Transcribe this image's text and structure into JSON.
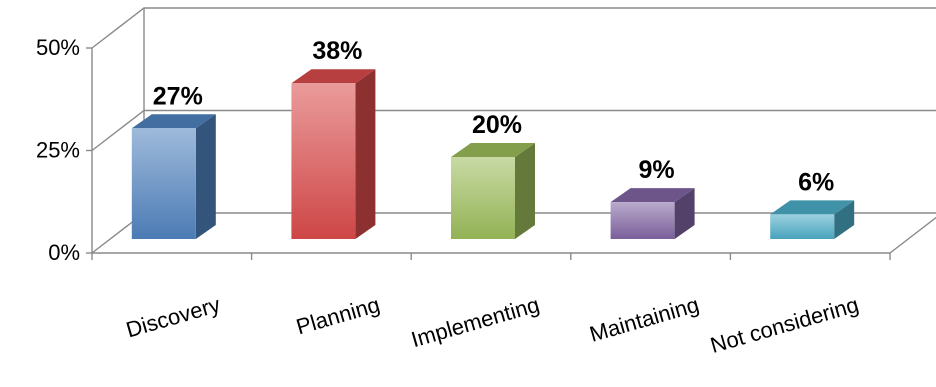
{
  "chart_data": {
    "type": "bar",
    "categories": [
      "Discovery",
      "Planning",
      "Implementing",
      "Maintaining",
      "Not considering"
    ],
    "values": [
      27,
      38,
      20,
      9,
      6
    ],
    "data_labels": [
      "27%",
      "38%",
      "20%",
      "9%",
      "6%"
    ],
    "ytick_labels": [
      "0%",
      "25%",
      "50%"
    ],
    "ylim": [
      0,
      50
    ],
    "grid": true,
    "three_d": true,
    "colors": [
      "#4f81bd",
      "#d94a4a",
      "#9bbb59",
      "#8064a2",
      "#4bacc6"
    ]
  }
}
